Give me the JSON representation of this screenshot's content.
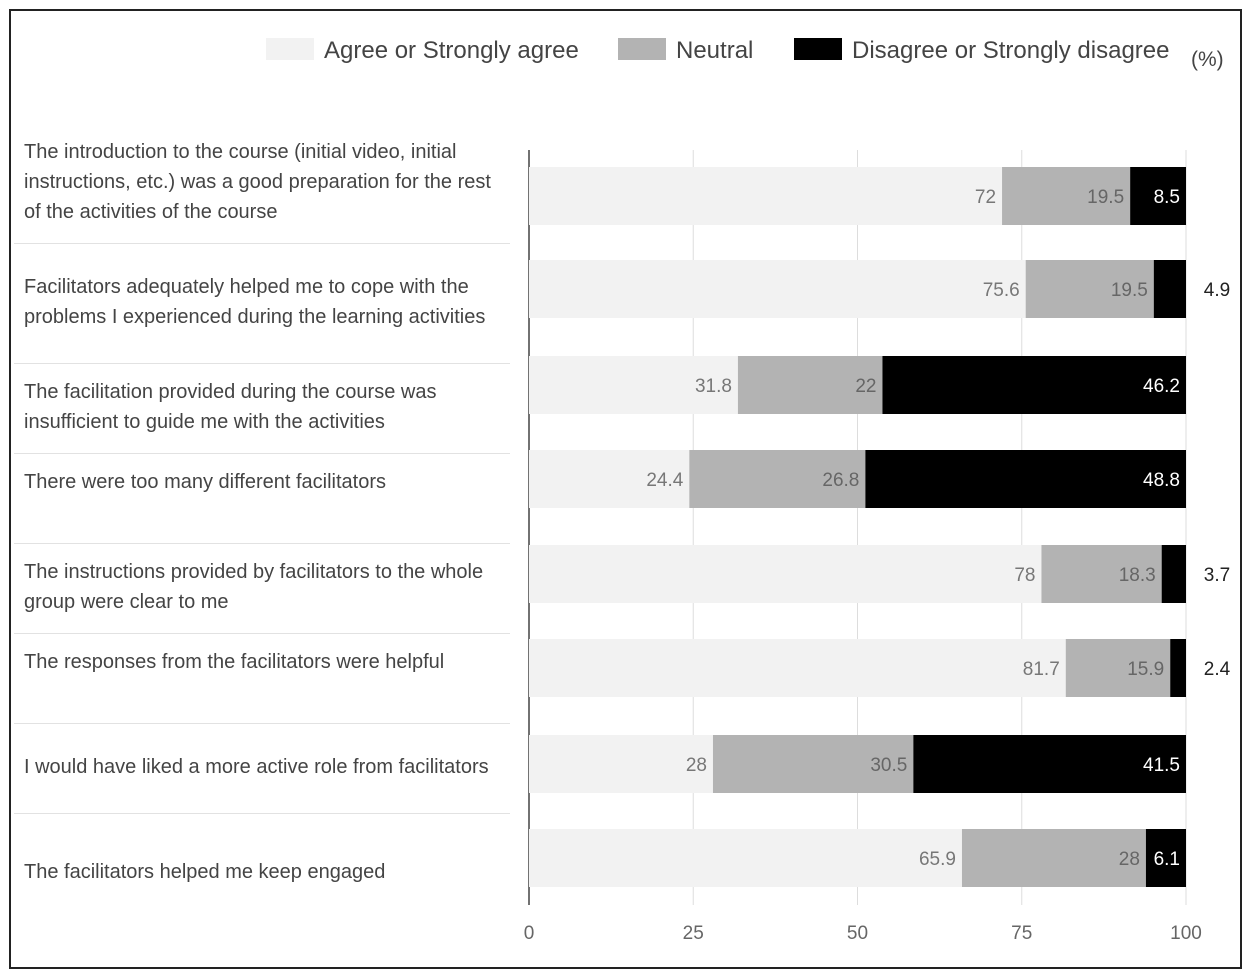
{
  "colors": {
    "agree": "#f2f2f2",
    "neutral": "#b3b3b3",
    "disagree": "#000000",
    "grid": "#dddddd",
    "axis": "#444444"
  },
  "legend": {
    "items": [
      {
        "label": "Agree or Strongly agree",
        "color": "#f2f2f2"
      },
      {
        "label": "Neutral",
        "color": "#b3b3b3"
      },
      {
        "label": "Disagree or Strongly disagree",
        "color": "#000000"
      }
    ],
    "unit": "(%)"
  },
  "chart_data": {
    "type": "bar",
    "orientation": "horizontal",
    "stacked": true,
    "categories": [
      "The introduction to the course (initial video, initial instructions, etc.) was a good preparation for the rest of the activities of the course",
      "Facilitators adequately helped me to cope with the problems I experienced during the learning activities",
      "The facilitation provided during the course was insufficient to guide me with the activities",
      "There were too many different facilitators",
      "The instructions provided by facilitators to the whole group were clear to me",
      "The responses from the facilitators were helpful",
      "I would have liked a more active role from facilitators",
      "The facilitators helped me keep engaged"
    ],
    "series": [
      {
        "name": "Agree or Strongly agree",
        "values": [
          72,
          75.6,
          31.8,
          24.4,
          78,
          81.7,
          28,
          65.9
        ]
      },
      {
        "name": "Neutral",
        "values": [
          19.5,
          19.5,
          22,
          26.8,
          18.3,
          15.9,
          30.5,
          28
        ]
      },
      {
        "name": "Disagree or Strongly disagree",
        "values": [
          8.5,
          4.9,
          46.2,
          48.8,
          3.7,
          2.4,
          41.5,
          6.1
        ]
      }
    ],
    "xlim": [
      0,
      100
    ],
    "xticks": [
      "0",
      "25",
      "50",
      "75",
      "100"
    ],
    "grid": true,
    "legend_position": "top"
  }
}
